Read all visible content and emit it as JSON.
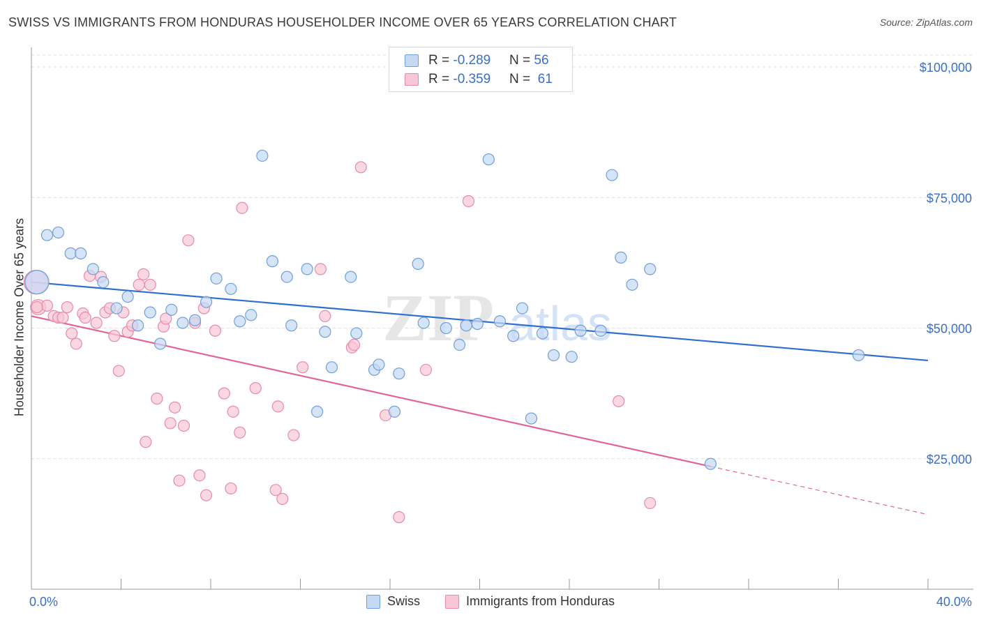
{
  "title": "SWISS VS IMMIGRANTS FROM HONDURAS HOUSEHOLDER INCOME OVER 65 YEARS CORRELATION CHART",
  "source": "Source: ZipAtlas.com",
  "watermark": {
    "zip": "ZIP",
    "atlas": "atlas"
  },
  "colors": {
    "swiss_fill": "#c5d9f5",
    "swiss_stroke": "#6f9fd8",
    "swiss_line": "#2f6fd0",
    "hond_fill": "#f8c7d6",
    "hond_stroke": "#e889a8",
    "hond_line": "#e0649a",
    "axis_text": "#3a6fc4",
    "grid": "#dcdcdc"
  },
  "legend": {
    "rows": [
      {
        "r_label": "R = ",
        "r_value": "-0.289",
        "n_label": "N = ",
        "n_value": "56"
      },
      {
        "r_label": "R = ",
        "r_value": "-0.359",
        "n_label": "N = ",
        "n_value": " 61"
      }
    ]
  },
  "chart_data": {
    "type": "scatter",
    "title": "SWISS VS IMMIGRANTS FROM HONDURAS HOUSEHOLDER INCOME OVER 65 YEARS CORRELATION CHART",
    "xlabel": "",
    "ylabel": "Householder Income Over 65 years",
    "xlim": [
      0,
      40
    ],
    "ylim": [
      0,
      105000
    ],
    "x_tick_labels": [
      "0.0%",
      "40.0%"
    ],
    "y_ticks": [
      25000,
      50000,
      75000,
      100000
    ],
    "y_tick_labels": [
      "$25,000",
      "$50,000",
      "$75,000",
      "$100,000"
    ],
    "legend_position": "top-center",
    "series": [
      {
        "name": "Swiss",
        "r": -0.289,
        "n": 56,
        "trend": {
          "x0": 0,
          "y0": 58800,
          "x1": 40,
          "y1": 43800,
          "dashed_from": null
        },
        "points": [
          [
            0.25,
            58800
          ],
          [
            0.7,
            67800
          ],
          [
            1.2,
            68300
          ],
          [
            1.75,
            64300
          ],
          [
            2.2,
            64300
          ],
          [
            2.75,
            61300
          ],
          [
            3.2,
            58800
          ],
          [
            3.8,
            53800
          ],
          [
            4.3,
            56000
          ],
          [
            4.75,
            50500
          ],
          [
            5.3,
            53000
          ],
          [
            5.75,
            47000
          ],
          [
            6.25,
            53500
          ],
          [
            6.75,
            51000
          ],
          [
            7.3,
            51500
          ],
          [
            7.8,
            55000
          ],
          [
            8.25,
            59500
          ],
          [
            8.9,
            57500
          ],
          [
            9.3,
            51300
          ],
          [
            9.8,
            52500
          ],
          [
            10.3,
            83000
          ],
          [
            10.75,
            62800
          ],
          [
            11.4,
            59800
          ],
          [
            11.6,
            50500
          ],
          [
            12.3,
            61300
          ],
          [
            12.75,
            34000
          ],
          [
            13.1,
            49300
          ],
          [
            13.4,
            42500
          ],
          [
            14.25,
            59800
          ],
          [
            14.5,
            49000
          ],
          [
            15.3,
            42000
          ],
          [
            15.5,
            43000
          ],
          [
            16.2,
            34000
          ],
          [
            16.4,
            41300
          ],
          [
            17.25,
            62300
          ],
          [
            17.5,
            51000
          ],
          [
            18.5,
            50000
          ],
          [
            19.1,
            46800
          ],
          [
            19.4,
            50500
          ],
          [
            19.9,
            50800
          ],
          [
            20.4,
            82300
          ],
          [
            20.9,
            51300
          ],
          [
            21.5,
            48500
          ],
          [
            21.9,
            53800
          ],
          [
            22.3,
            32700
          ],
          [
            22.8,
            49000
          ],
          [
            23.3,
            44800
          ],
          [
            24.1,
            44500
          ],
          [
            24.5,
            49500
          ],
          [
            25.4,
            49500
          ],
          [
            25.9,
            79300
          ],
          [
            26.3,
            63500
          ],
          [
            26.8,
            58300
          ],
          [
            27.6,
            61300
          ],
          [
            30.3,
            24000
          ],
          [
            36.9,
            44800
          ]
        ]
      },
      {
        "name": "Immigrants from Honduras",
        "r": -0.359,
        "n": 61,
        "trend": {
          "x0": 0,
          "y0": 52300,
          "x1": 40,
          "y1": 14300,
          "dashed_from": 30.3
        },
        "points": [
          [
            0.2,
            58800
          ],
          [
            0.3,
            54000
          ],
          [
            0.7,
            54300
          ],
          [
            1.0,
            52300
          ],
          [
            1.2,
            52000
          ],
          [
            1.4,
            52000
          ],
          [
            1.6,
            54000
          ],
          [
            1.8,
            49000
          ],
          [
            2.0,
            47000
          ],
          [
            2.3,
            52800
          ],
          [
            2.4,
            52000
          ],
          [
            2.6,
            60000
          ],
          [
            2.9,
            51000
          ],
          [
            3.1,
            59800
          ],
          [
            3.3,
            53000
          ],
          [
            3.5,
            53800
          ],
          [
            3.7,
            48500
          ],
          [
            3.9,
            41800
          ],
          [
            4.1,
            53000
          ],
          [
            4.3,
            49300
          ],
          [
            4.5,
            50500
          ],
          [
            4.8,
            58300
          ],
          [
            5.0,
            60300
          ],
          [
            5.1,
            28200
          ],
          [
            5.3,
            58300
          ],
          [
            5.6,
            36500
          ],
          [
            5.9,
            50300
          ],
          [
            6.0,
            51800
          ],
          [
            6.2,
            31800
          ],
          [
            6.4,
            34800
          ],
          [
            6.6,
            20800
          ],
          [
            6.8,
            31300
          ],
          [
            7.0,
            66800
          ],
          [
            7.3,
            51000
          ],
          [
            7.5,
            21800
          ],
          [
            7.7,
            53800
          ],
          [
            7.8,
            18000
          ],
          [
            8.2,
            49500
          ],
          [
            8.6,
            37500
          ],
          [
            8.9,
            19300
          ],
          [
            9.0,
            34000
          ],
          [
            9.3,
            30000
          ],
          [
            9.4,
            73000
          ],
          [
            10.0,
            38500
          ],
          [
            10.9,
            19000
          ],
          [
            11.0,
            35000
          ],
          [
            11.2,
            17300
          ],
          [
            11.7,
            29500
          ],
          [
            12.1,
            42500
          ],
          [
            12.9,
            61300
          ],
          [
            13.1,
            52300
          ],
          [
            14.3,
            46300
          ],
          [
            14.4,
            46800
          ],
          [
            14.7,
            80800
          ],
          [
            15.8,
            33300
          ],
          [
            16.4,
            13800
          ],
          [
            17.6,
            42000
          ],
          [
            19.5,
            74300
          ],
          [
            26.2,
            36000
          ],
          [
            27.6,
            16500
          ],
          [
            0.25,
            54000
          ]
        ]
      }
    ]
  }
}
